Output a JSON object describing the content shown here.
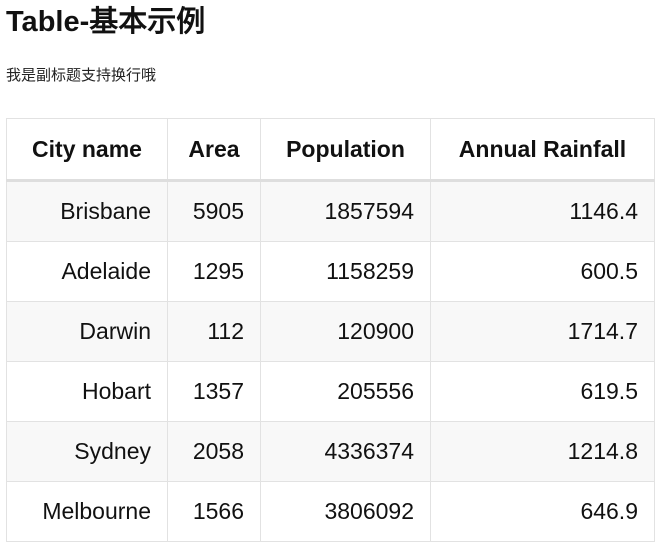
{
  "header": {
    "title": "Table-基本示例",
    "subtitle": "我是副标题支持换行哦"
  },
  "table": {
    "columns": [
      "City name",
      "Area",
      "Population",
      "Annual Rainfall"
    ],
    "rows": [
      [
        "Brisbane",
        5905,
        1857594,
        1146.4
      ],
      [
        "Adelaide",
        1295,
        1158259,
        600.5
      ],
      [
        "Darwin",
        112,
        120900,
        1714.7
      ],
      [
        "Hobart",
        1357,
        205556,
        619.5
      ],
      [
        "Sydney",
        2058,
        4336374,
        1214.8
      ],
      [
        "Melbourne",
        1566,
        3806092,
        646.9
      ]
    ]
  }
}
